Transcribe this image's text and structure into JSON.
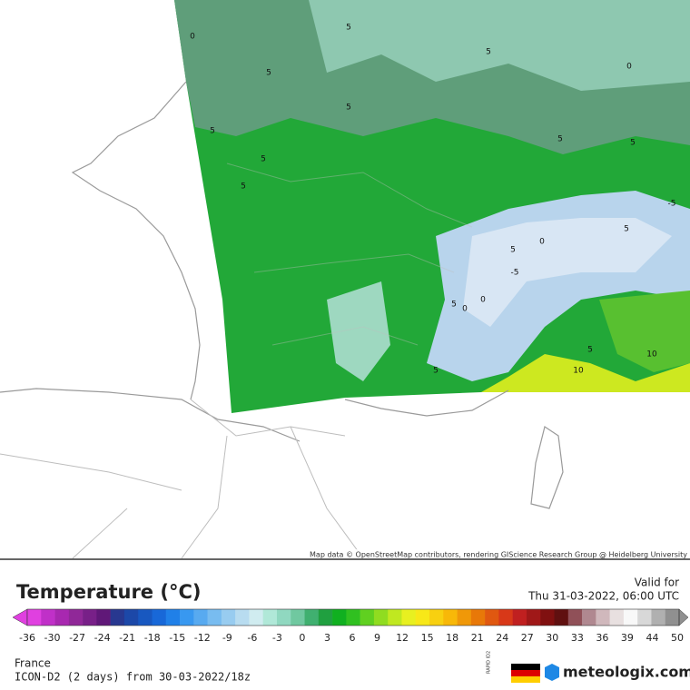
{
  "map": {
    "attribution": "Map data © OpenStreetMap contributors, rendering GIScience Research Group @ Heidelberg University",
    "contour_labels": [
      "0",
      "5",
      "5",
      "0",
      "5",
      "5",
      "5",
      "5",
      "5",
      "5",
      "5",
      "5",
      "5",
      "0",
      "-5",
      "0",
      "-5",
      "0",
      "5",
      "10",
      "10",
      "5",
      "5"
    ]
  },
  "legend": {
    "title": "Temperature (°C)",
    "valid_label": "Valid for",
    "valid_time": "Thu 31-03-2022, 06:00 UTC",
    "ticks": [
      -36,
      -30,
      -27,
      -24,
      -21,
      -18,
      -15,
      -12,
      -9,
      -6,
      -3,
      0,
      3,
      6,
      9,
      12,
      15,
      18,
      21,
      24,
      27,
      30,
      33,
      36,
      39,
      44,
      50
    ],
    "colors": [
      "#e040e0",
      "#c030c8",
      "#a828b0",
      "#902898",
      "#782088",
      "#601878",
      "#283890",
      "#1c48a8",
      "#1858c0",
      "#1868d8",
      "#2080e8",
      "#3898f0",
      "#58aaf0",
      "#78bcf0",
      "#98ccf0",
      "#b8dcf0",
      "#d0ecf0",
      "#b0e8d8",
      "#90d8c0",
      "#70c8a0",
      "#40b070",
      "#20a040",
      "#10b020",
      "#30c020",
      "#60d020",
      "#90dc20",
      "#c0e820",
      "#e8f020",
      "#f8e818",
      "#f8d010",
      "#f8b808",
      "#f09808",
      "#e87808",
      "#e05810",
      "#d83818",
      "#c02020",
      "#a01818",
      "#801010",
      "#601010",
      "#905058",
      "#b08890",
      "#d0b8bc",
      "#e8e0e0",
      "#f8f8f8",
      "#d8d8d8",
      "#b0b0b0",
      "#909090"
    ]
  },
  "footer": {
    "region": "France",
    "model": "ICON-D2 (2 days) from 30-03-2022/18z",
    "badge": "RAPID ID2",
    "brand": "meteologix.com"
  }
}
